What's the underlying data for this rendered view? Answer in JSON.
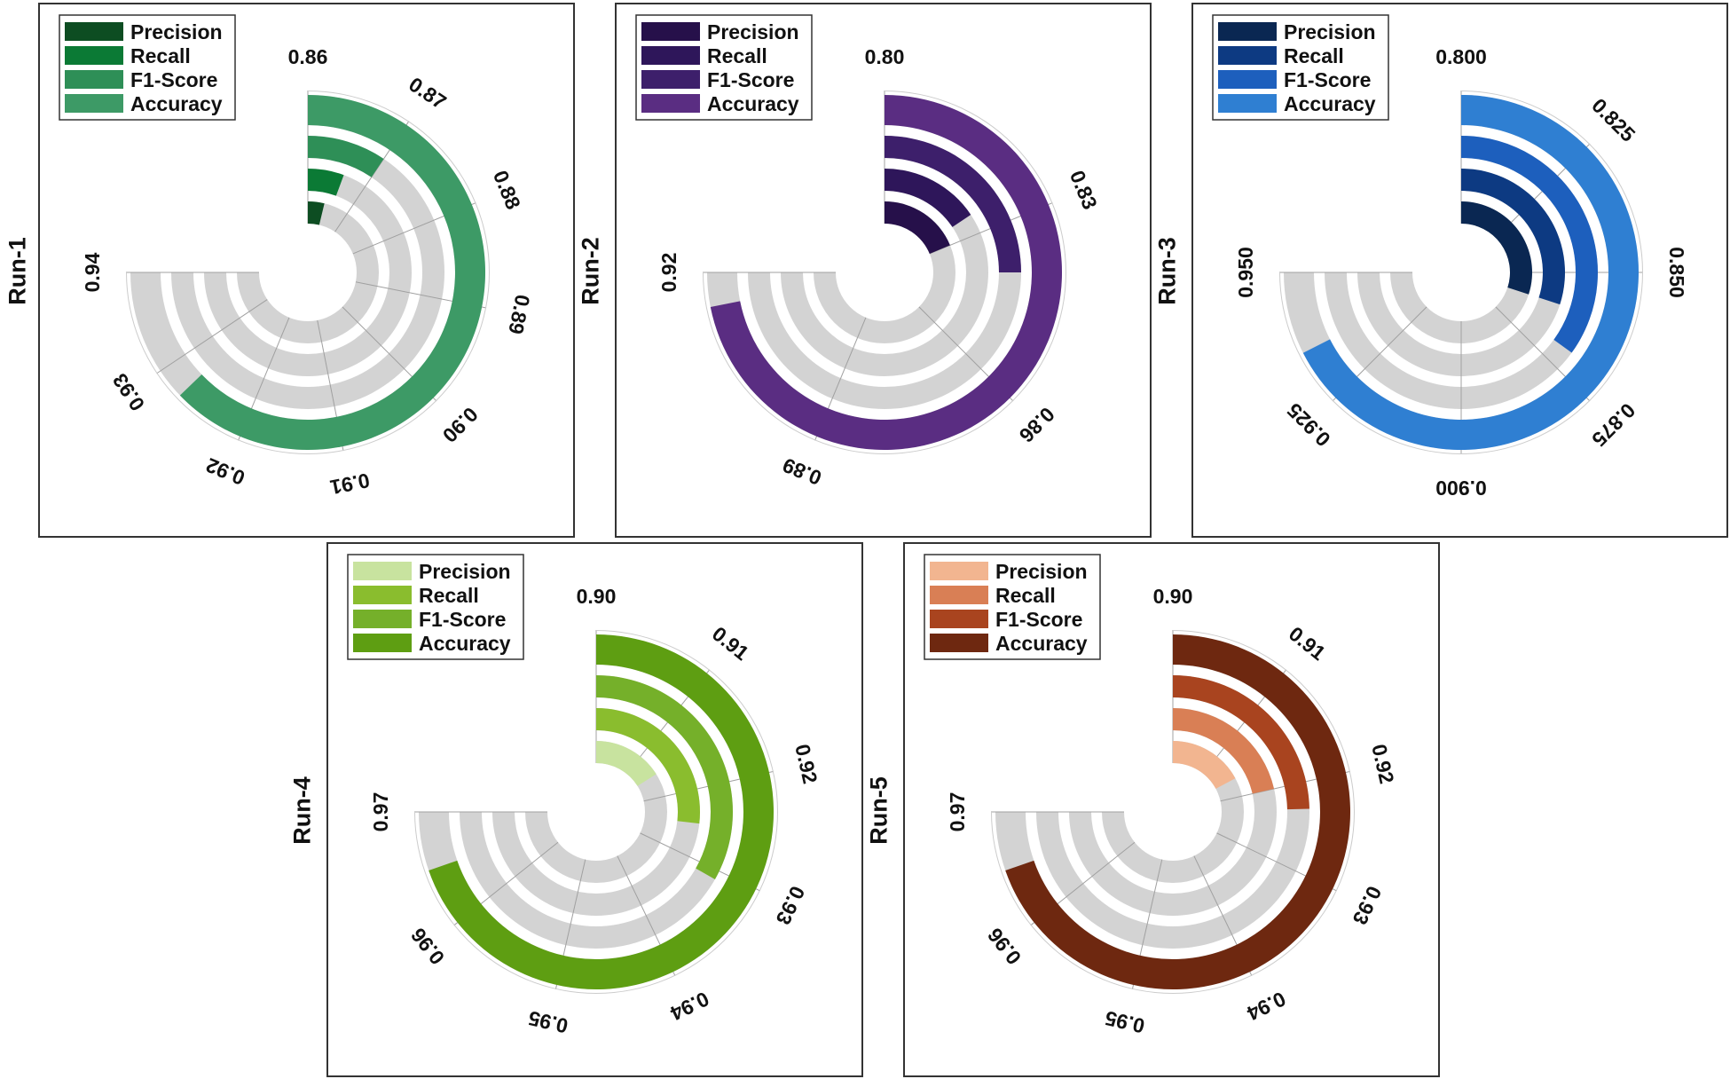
{
  "chart_data": [
    {
      "type": "radial-bar",
      "run_label": "Run-1",
      "legend": [
        "Precision",
        "Recall",
        "F1-Score",
        "Accuracy"
      ],
      "colors": [
        "#0d4d22",
        "#0b7a35",
        "#2e8f57",
        "#3d9a66"
      ],
      "values": {
        "Precision": 0.864,
        "Recall": 0.866,
        "F1-Score": 0.87,
        "Accuracy": 0.927
      },
      "range": [
        0.86,
        0.94
      ],
      "tick_values": [
        0.86,
        0.87,
        0.88,
        0.89,
        0.9,
        0.91,
        0.92,
        0.93,
        0.94
      ],
      "tick_labels": [
        "0.86",
        "0.87",
        "0.88",
        "0.89",
        "0.90",
        "0.91",
        "0.92",
        "0.93",
        "0.94"
      ]
    },
    {
      "type": "radial-bar",
      "run_label": "Run-2",
      "legend": [
        "Precision",
        "Recall",
        "F1-Score",
        "Accuracy"
      ],
      "colors": [
        "#26104a",
        "#2e165a",
        "#3d1f6b",
        "#5a2d82"
      ],
      "values": {
        "Precision": 0.83,
        "Recall": 0.825,
        "F1-Score": 0.84,
        "Accuracy": 0.915
      },
      "range": [
        0.8,
        0.92
      ],
      "tick_values": [
        0.8,
        0.83,
        0.86,
        0.89,
        0.92
      ],
      "tick_labels": [
        "0.80",
        "0.83",
        "0.86",
        "0.89",
        "0.92"
      ]
    },
    {
      "type": "radial-bar",
      "run_label": "Run-3",
      "legend": [
        "Precision",
        "Recall",
        "F1-Score",
        "Accuracy"
      ],
      "colors": [
        "#0a2752",
        "#0d3a82",
        "#1d5fbd",
        "#2f7fd2"
      ],
      "values": {
        "Precision": 0.86,
        "Recall": 0.86,
        "F1-Score": 0.87,
        "Accuracy": 0.935
      },
      "range": [
        0.8,
        0.95
      ],
      "tick_values": [
        0.8,
        0.825,
        0.85,
        0.875,
        0.9,
        0.925,
        0.95
      ],
      "tick_labels": [
        "0.800",
        "0.825",
        "0.850",
        "0.875",
        "0.900",
        "0.925",
        "0.950"
      ]
    },
    {
      "type": "radial-bar",
      "run_label": "Run-4",
      "legend": [
        "Precision",
        "Recall",
        "F1-Score",
        "Accuracy"
      ],
      "colors": [
        "#c8e39f",
        "#8abd2e",
        "#75b02a",
        "#5e9e12"
      ],
      "values": {
        "Precision": 0.915,
        "Recall": 0.925,
        "F1-Score": 0.931,
        "Accuracy": 0.965
      },
      "range": [
        0.9,
        0.97
      ],
      "tick_values": [
        0.9,
        0.91,
        0.92,
        0.93,
        0.94,
        0.95,
        0.96,
        0.97
      ],
      "tick_labels": [
        "0.90",
        "0.91",
        "0.92",
        "0.93",
        "0.94",
        "0.95",
        "0.96",
        "0.97"
      ]
    },
    {
      "type": "radial-bar",
      "run_label": "Run-5",
      "legend": [
        "Precision",
        "Recall",
        "F1-Score",
        "Accuracy"
      ],
      "colors": [
        "#f2b590",
        "#d97f55",
        "#a9441f",
        "#6e2810"
      ],
      "values": {
        "Precision": 0.916,
        "Recall": 0.92,
        "F1-Score": 0.923,
        "Accuracy": 0.965
      },
      "range": [
        0.9,
        0.97
      ],
      "tick_values": [
        0.9,
        0.91,
        0.92,
        0.93,
        0.94,
        0.95,
        0.96,
        0.97
      ],
      "tick_labels": [
        "0.90",
        "0.91",
        "0.92",
        "0.93",
        "0.94",
        "0.95",
        "0.96",
        "0.97"
      ]
    }
  ]
}
